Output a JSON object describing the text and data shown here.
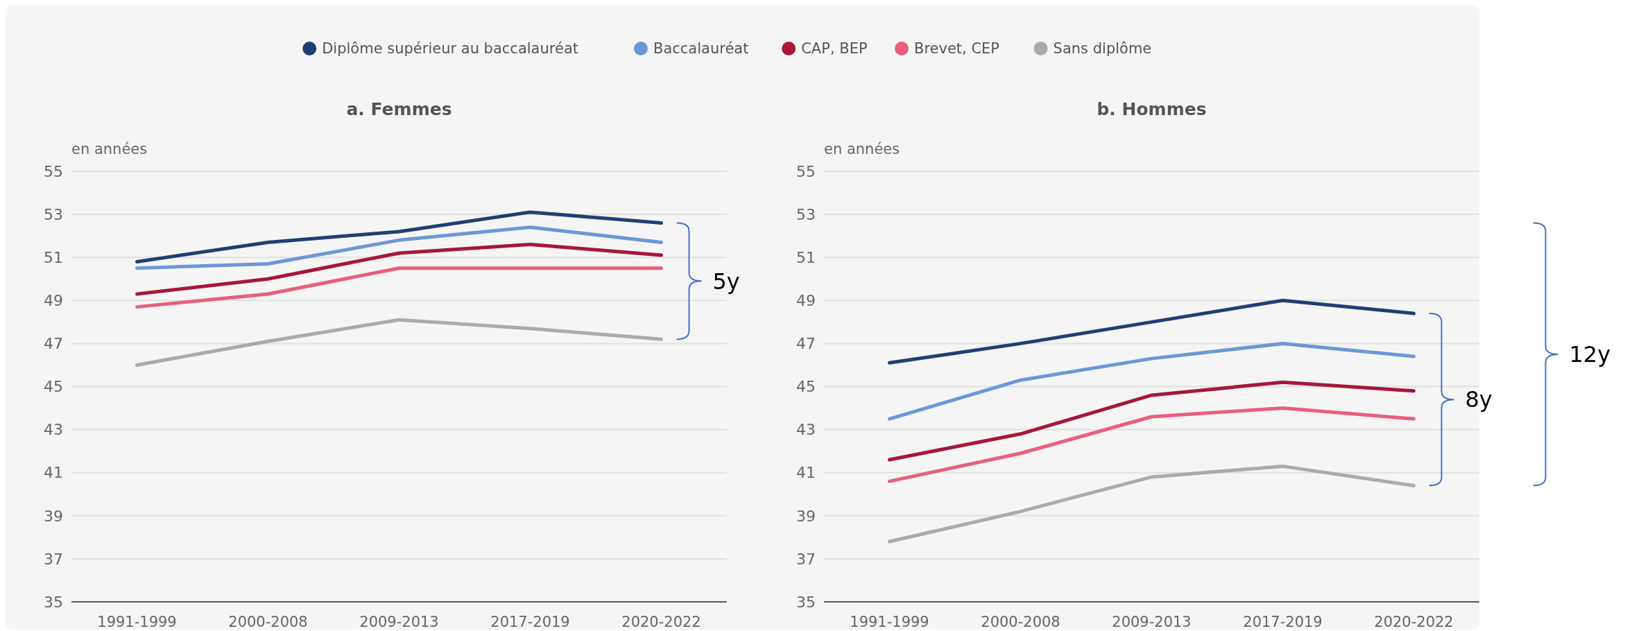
{
  "chart_data": [
    {
      "type": "line",
      "title": "a. Femmes",
      "ylabel": "en années",
      "categories": [
        "1991-1999",
        "2000-2008",
        "2009-2013",
        "2017-2019",
        "2020-2022"
      ],
      "ylim": [
        35,
        55
      ],
      "yticks": [
        35,
        37,
        39,
        41,
        43,
        45,
        47,
        49,
        51,
        53,
        55
      ],
      "grid": "y",
      "legend": "top",
      "marker": "none",
      "line_style": "solid",
      "series": [
        {
          "name": "Diplôme supérieur au baccalauréat",
          "color": "#1f3f73",
          "values": [
            50.8,
            51.7,
            52.2,
            53.1,
            52.6
          ]
        },
        {
          "name": "Baccalauréat",
          "color": "#6b97d6",
          "values": [
            50.5,
            50.7,
            51.8,
            52.4,
            51.7
          ]
        },
        {
          "name": "CAP, BEP",
          "color": "#a6173a",
          "values": [
            49.3,
            50.0,
            51.2,
            51.6,
            51.1
          ]
        },
        {
          "name": "Brevet, CEP",
          "color": "#e85f7e",
          "values": [
            48.7,
            49.3,
            50.5,
            50.5,
            50.5
          ]
        },
        {
          "name": "Sans diplôme",
          "color": "#aaaaaa",
          "values": [
            46.0,
            47.1,
            48.1,
            47.7,
            47.2
          ]
        }
      ],
      "annotations": [
        "5y"
      ]
    },
    {
      "type": "line",
      "title": "b. Hommes",
      "ylabel": "en années",
      "categories": [
        "1991-1999",
        "2000-2008",
        "2009-2013",
        "2017-2019",
        "2020-2022"
      ],
      "ylim": [
        35,
        55
      ],
      "yticks": [
        35,
        37,
        39,
        41,
        43,
        45,
        47,
        49,
        51,
        53,
        55
      ],
      "grid": "y",
      "marker": "none",
      "line_style": "solid",
      "series": [
        {
          "color": "#1f3f73",
          "values": [
            46.1,
            47.0,
            48.0,
            49.0,
            48.4
          ]
        },
        {
          "color": "#6b97d6",
          "values": [
            43.5,
            45.3,
            46.3,
            47.0,
            46.4
          ]
        },
        {
          "color": "#a6173a",
          "values": [
            41.6,
            42.8,
            44.6,
            45.2,
            44.8
          ]
        },
        {
          "color": "#e85f7e",
          "values": [
            40.6,
            41.9,
            43.6,
            44.0,
            43.5
          ]
        },
        {
          "color": "#aaaaaa",
          "values": [
            37.8,
            39.2,
            40.8,
            41.3,
            40.4
          ]
        }
      ],
      "annotations": [
        "8y",
        "12y"
      ]
    }
  ]
}
